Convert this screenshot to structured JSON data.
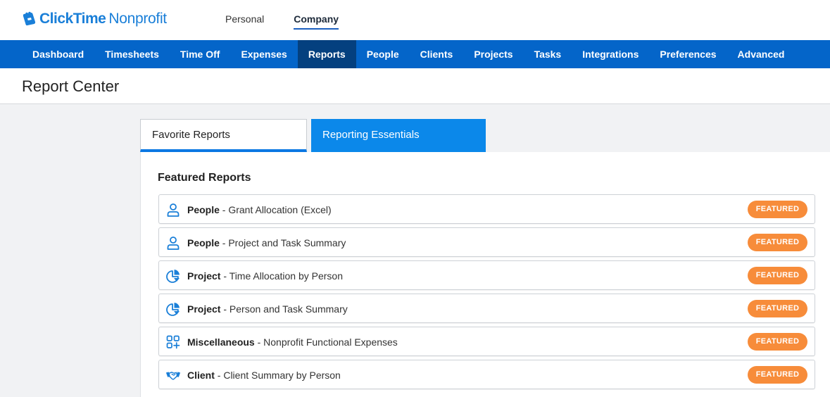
{
  "brand": {
    "name": "ClickTime",
    "product": "Nonprofit",
    "color": "#1a7fd8"
  },
  "mode_switch": [
    {
      "label": "Personal",
      "active": false
    },
    {
      "label": "Company",
      "active": true
    }
  ],
  "nav": {
    "items": [
      {
        "label": "Dashboard"
      },
      {
        "label": "Timesheets"
      },
      {
        "label": "Time Off"
      },
      {
        "label": "Expenses"
      },
      {
        "label": "Reports",
        "active": true
      },
      {
        "label": "People"
      },
      {
        "label": "Clients"
      },
      {
        "label": "Projects"
      },
      {
        "label": "Tasks"
      },
      {
        "label": "Integrations"
      },
      {
        "label": "Preferences"
      },
      {
        "label": "Advanced"
      }
    ],
    "color": "#0465c9",
    "active_color": "#04407f"
  },
  "page": {
    "title": "Report Center"
  },
  "tabs": [
    {
      "label": "Favorite Reports",
      "active": false
    },
    {
      "label": "Reporting Essentials",
      "active": true
    }
  ],
  "featured": {
    "title": "Featured Reports",
    "badge_color": "#f78c3a",
    "reports": [
      {
        "category": "People",
        "name": " - Grant Allocation (Excel)",
        "icon": "person-icon",
        "badge": "FEATURED"
      },
      {
        "category": "People",
        "name": " - Project and Task Summary",
        "icon": "person-icon",
        "badge": "FEATURED"
      },
      {
        "category": "Project",
        "name": " - Time Allocation by Person",
        "icon": "pie-chart-icon",
        "badge": "FEATURED"
      },
      {
        "category": "Project",
        "name": " - Person and Task Summary",
        "icon": "pie-chart-icon",
        "badge": "FEATURED"
      },
      {
        "category": "Miscellaneous",
        "name": " - Nonprofit Functional Expenses",
        "icon": "grid-plus-icon",
        "badge": "FEATURED"
      },
      {
        "category": "Client",
        "name": " - Client Summary by Person",
        "icon": "handshake-icon",
        "badge": "FEATURED"
      }
    ]
  }
}
